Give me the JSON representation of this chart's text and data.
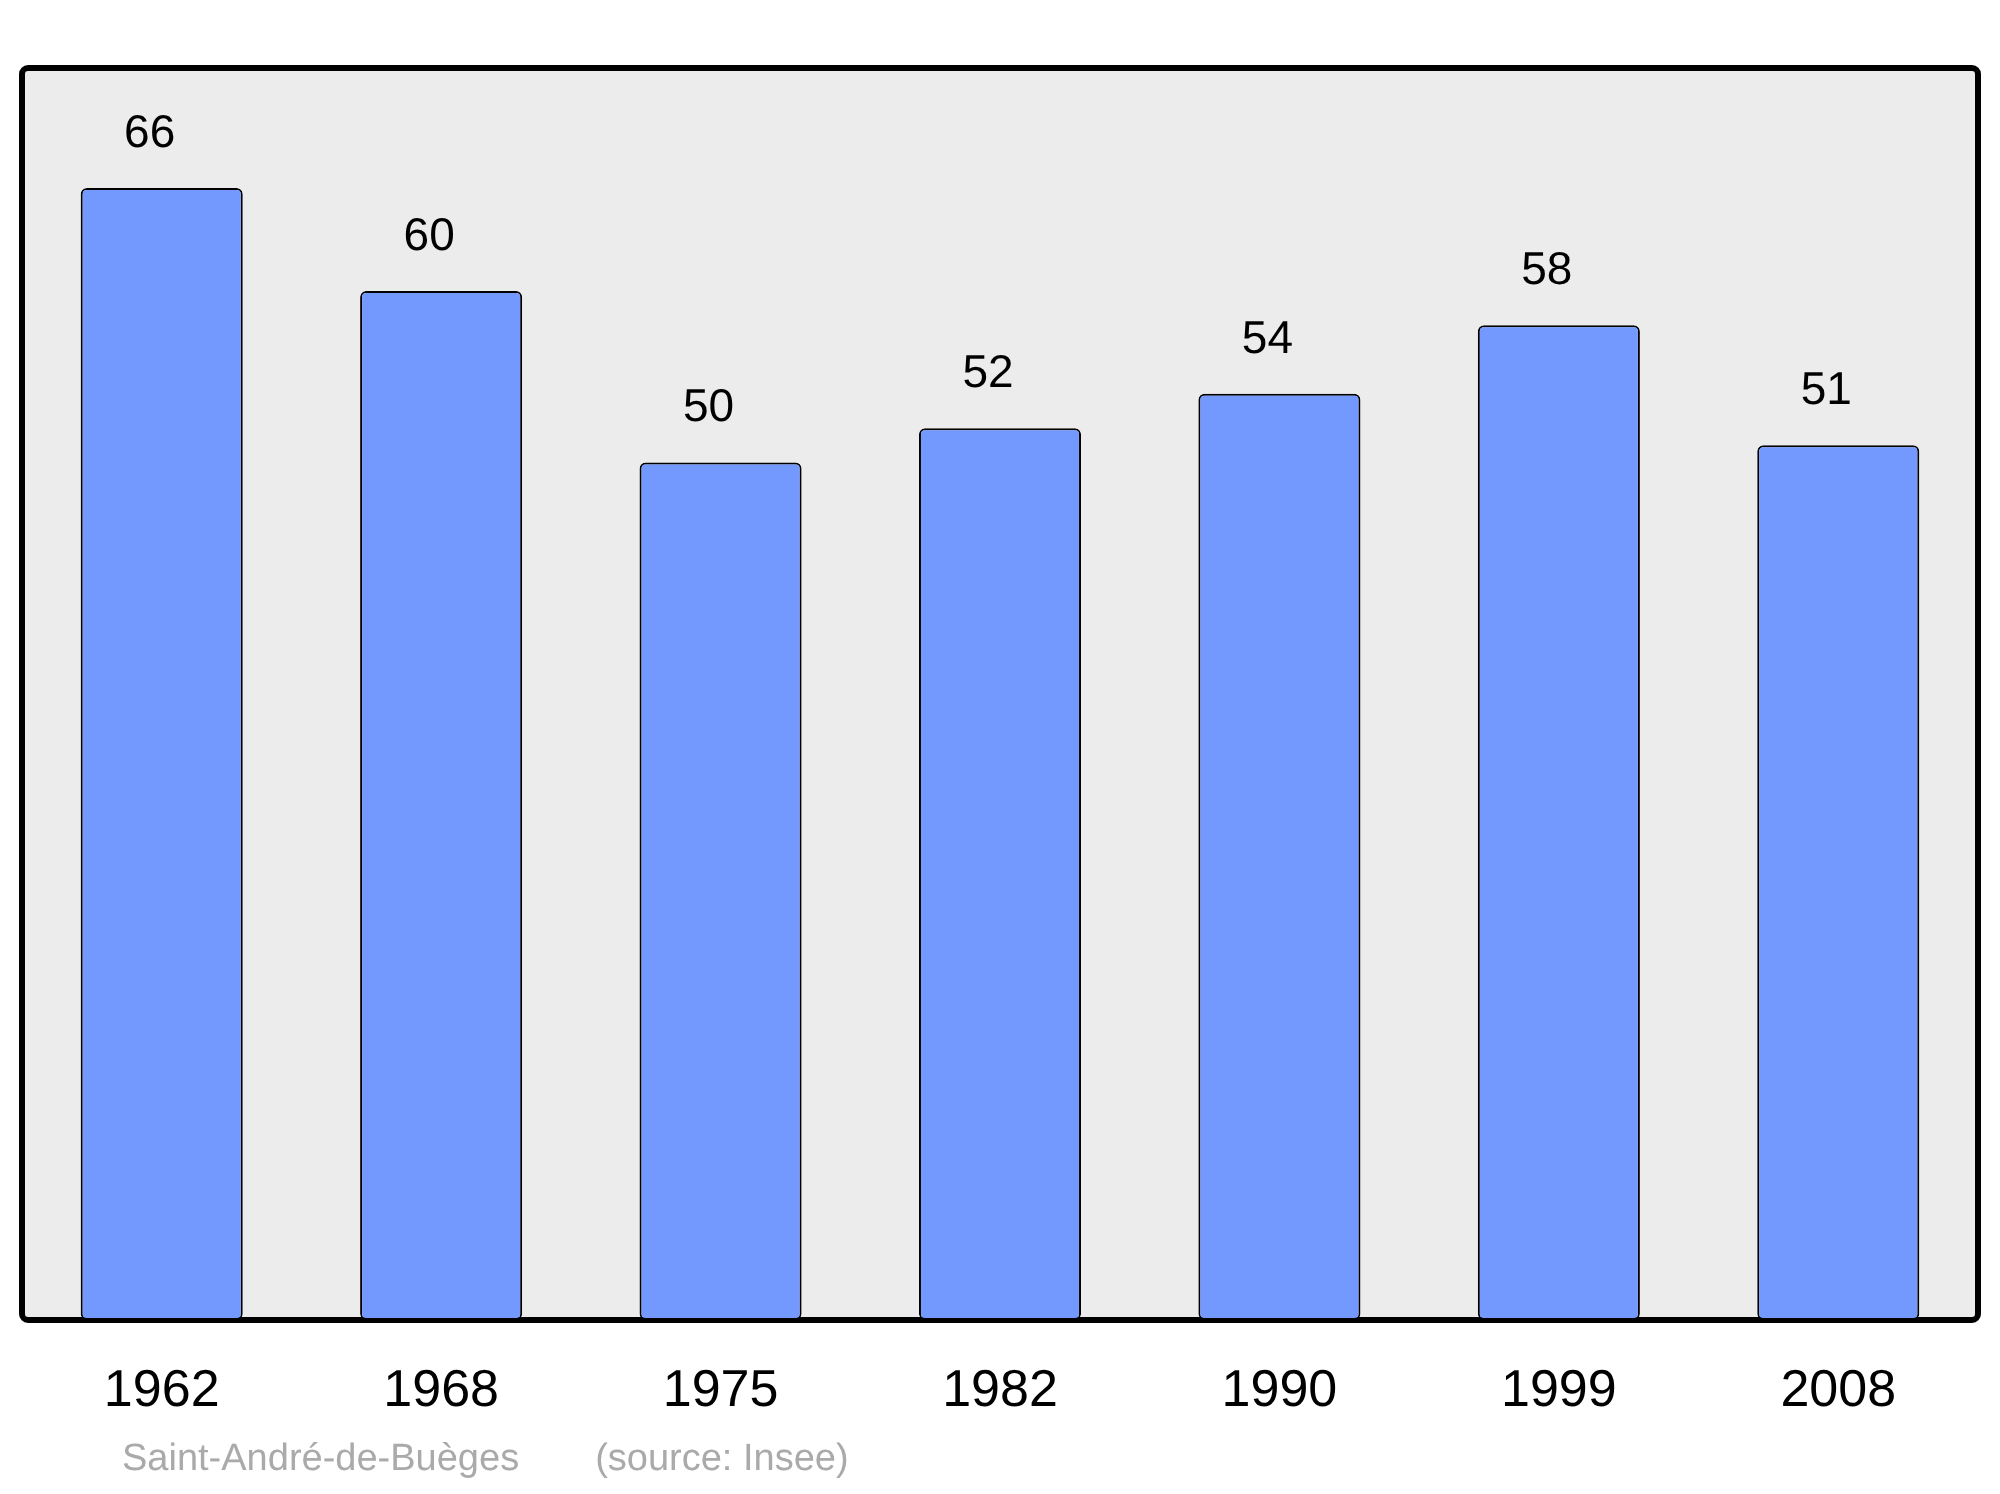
{
  "chart_data": {
    "type": "bar",
    "categories": [
      "1962",
      "1968",
      "1975",
      "1982",
      "1990",
      "1999",
      "2008"
    ],
    "values": [
      66,
      60,
      50,
      52,
      54,
      58,
      51
    ],
    "color": "#7399ff",
    "ylim": [
      0,
      73
    ],
    "grid": false,
    "legend": false,
    "tick_labels": "x",
    "data_labels": true,
    "annotations": [
      "Saint-André-de-Buèges    (source: Insee)"
    ]
  }
}
